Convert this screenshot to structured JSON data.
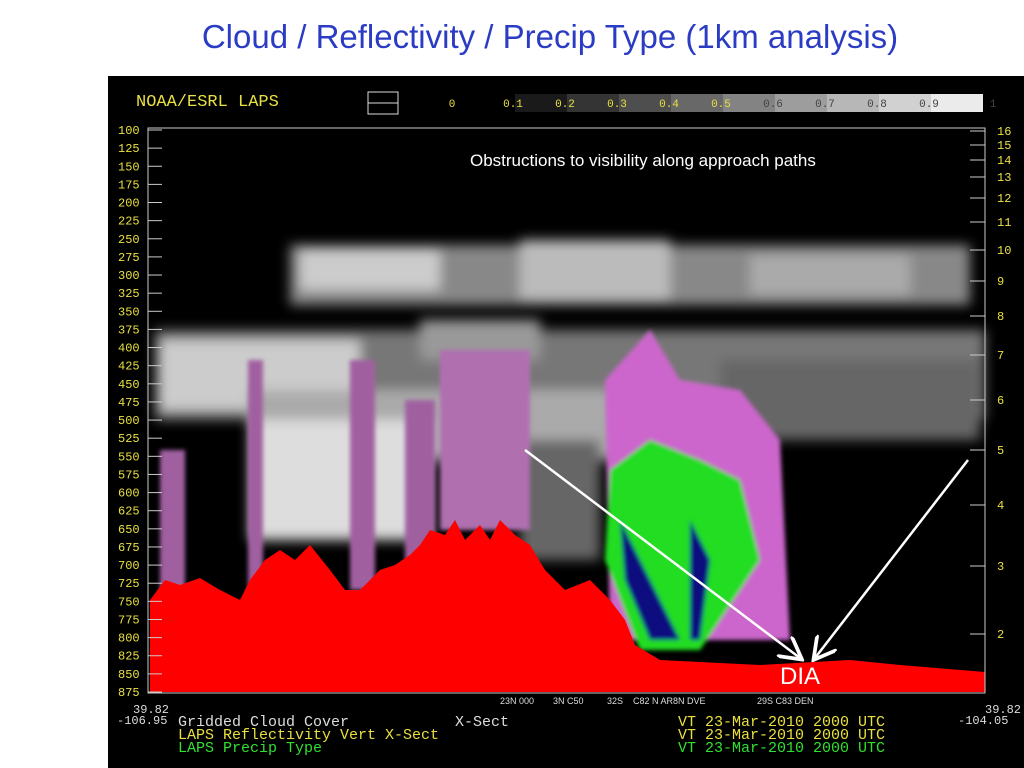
{
  "title": "Cloud / Reflectivity / Precip Type (1km analysis)",
  "panel": {
    "header": "NOAA/ESRL LAPS",
    "scale_labels": [
      "0",
      "0.1",
      "0.2",
      "0.3",
      "0.4",
      "0.5",
      "0.6",
      "0.7",
      "0.8",
      "0.9",
      "1"
    ],
    "pressure_labels": [
      "100",
      "125",
      "150",
      "175",
      "200",
      "225",
      "250",
      "275",
      "300",
      "325",
      "350",
      "375",
      "400",
      "425",
      "450",
      "475",
      "500",
      "525",
      "550",
      "575",
      "600",
      "625",
      "650",
      "675",
      "700",
      "725",
      "750",
      "775",
      "800",
      "825",
      "850",
      "875"
    ],
    "height_labels": [
      "16",
      "15",
      "14",
      "13",
      "12",
      "11",
      "10",
      "9",
      "8",
      "7",
      "6",
      "5",
      "4",
      "3",
      "2"
    ],
    "left_coords": [
      "39.82",
      "-106.95"
    ],
    "right_coords": [
      "39.82",
      "-104.05"
    ],
    "station_labels": [
      "23N 000",
      "3N C50",
      "32S",
      "C82 N AR8N DVE",
      "29S C83 DEN"
    ],
    "footer": [
      [
        "Gridded Cloud Cover",
        "X-Sect",
        "VT 23-Mar-2010 2000 UTC"
      ],
      [
        "LAPS Reflectivity Vert X-Sect",
        "VT 23-Mar-2010 2000 UTC"
      ],
      [
        "LAPS Precip Type",
        "VT 23-Mar-2010 2000 UTC"
      ]
    ]
  },
  "annotation": "Obstructions to visibility along approach paths",
  "airport_label": "DIA"
}
